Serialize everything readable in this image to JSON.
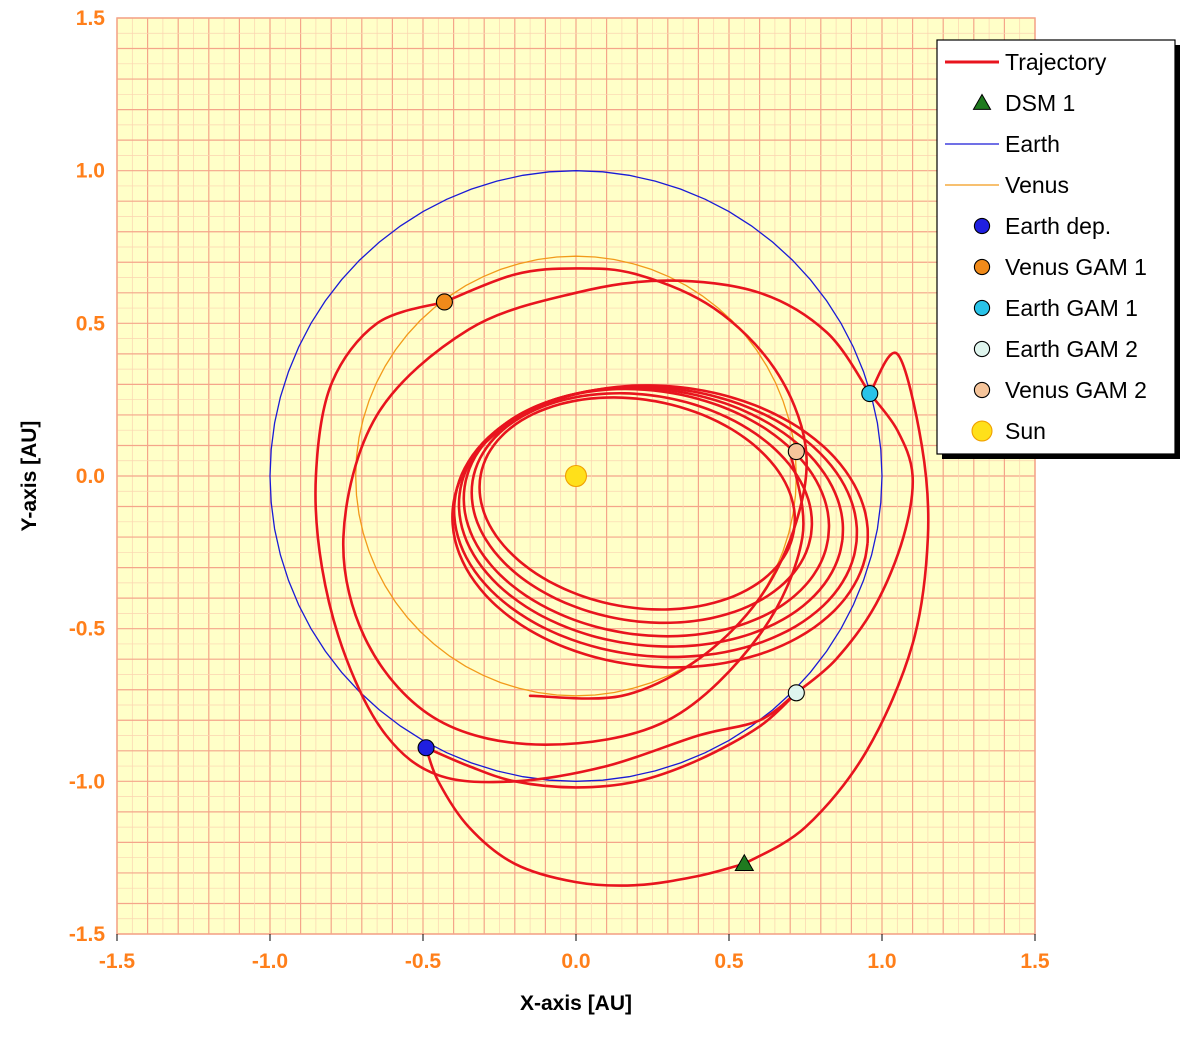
{
  "chart_data": {
    "type": "scatter",
    "xlabel": "X-axis [AU]",
    "ylabel": "Y-axis [AU]",
    "xlim": [
      -1.5,
      1.5
    ],
    "ylim": [
      -1.5,
      1.5
    ],
    "xticks": [
      "-1.5",
      "-1.0",
      "-0.5",
      "0.0",
      "0.5",
      "1.0",
      "1.5"
    ],
    "yticks": [
      "1.5",
      "1.0",
      "0.5",
      "0.0",
      "-0.5",
      "-1.0",
      "-1.5"
    ],
    "grid": true,
    "legend_position": "top-right",
    "colors": {
      "plot_background": "#ffffc8",
      "major_grid": "#f4a58a",
      "minor_grid": "#fbd3b0",
      "tick_label": "#ff7f1a",
      "trajectory": "#e8141e",
      "earth_orbit": "#1a1ad6",
      "venus_orbit": "#f29a1a"
    },
    "series": [
      {
        "name": "Trajectory",
        "kind": "line",
        "color": "#e8141e",
        "segments": [
          {
            "points": [
              [
                -0.49,
                -0.89
              ],
              [
                -0.35,
                -0.95
              ],
              [
                -0.2,
                -1.0
              ],
              [
                0.0,
                -1.02
              ],
              [
                0.2,
                -1.0
              ],
              [
                0.4,
                -0.93
              ],
              [
                0.6,
                -0.82
              ],
              [
                0.72,
                -0.71
              ]
            ]
          },
          {
            "points": [
              [
                0.72,
                -0.71
              ],
              [
                0.85,
                -0.6
              ],
              [
                0.98,
                -0.42
              ],
              [
                1.07,
                -0.2
              ],
              [
                1.1,
                0.0
              ],
              [
                1.05,
                0.15
              ],
              [
                0.96,
                0.27
              ]
            ]
          },
          {
            "points": [
              [
                0.96,
                0.27
              ],
              [
                0.82,
                0.47
              ],
              [
                0.6,
                0.6
              ],
              [
                0.3,
                0.64
              ],
              [
                0.0,
                0.6
              ],
              [
                -0.35,
                0.48
              ],
              [
                -0.65,
                0.2
              ],
              [
                -0.76,
                -0.2
              ],
              [
                -0.68,
                -0.55
              ],
              [
                -0.45,
                -0.8
              ],
              [
                -0.1,
                -0.88
              ],
              [
                0.3,
                -0.8
              ],
              [
                0.6,
                -0.52
              ],
              [
                0.74,
                -0.2
              ],
              [
                0.7,
                0.08
              ]
            ]
          },
          {
            "extra": true,
            "cx": 0.2,
            "cy": 0.0,
            "rxy": [
              [
                0.52,
                0.34
              ],
              [
                0.56,
                0.37
              ],
              [
                0.6,
                0.4
              ],
              [
                0.63,
                0.42
              ],
              [
                0.66,
                0.44
              ],
              [
                0.68,
                0.46
              ]
            ]
          },
          {
            "points": [
              [
                -0.43,
                0.57
              ],
              [
                -0.2,
                0.66
              ],
              [
                0.0,
                0.68
              ],
              [
                0.2,
                0.66
              ],
              [
                0.45,
                0.55
              ],
              [
                0.65,
                0.35
              ],
              [
                0.75,
                0.1
              ],
              [
                0.72,
                -0.15
              ],
              [
                0.6,
                -0.4
              ],
              [
                0.4,
                -0.6
              ],
              [
                0.15,
                -0.72
              ],
              [
                -0.15,
                -0.72
              ]
            ]
          },
          {
            "points": [
              [
                0.72,
                -0.71
              ],
              [
                0.6,
                -0.8
              ],
              [
                0.4,
                -0.85
              ],
              [
                0.1,
                -0.95
              ],
              [
                -0.2,
                -1.0
              ],
              [
                -0.45,
                -0.98
              ],
              [
                -0.62,
                -0.85
              ],
              [
                -0.75,
                -0.6
              ],
              [
                -0.83,
                -0.3
              ],
              [
                -0.85,
                0.0
              ],
              [
                -0.8,
                0.3
              ],
              [
                -0.65,
                0.5
              ],
              [
                -0.43,
                0.57
              ]
            ]
          },
          {
            "points": [
              [
                0.55,
                -1.27
              ],
              [
                0.4,
                -1.31
              ],
              [
                0.2,
                -1.34
              ],
              [
                0.0,
                -1.33
              ],
              [
                -0.2,
                -1.27
              ],
              [
                -0.35,
                -1.15
              ],
              [
                -0.45,
                -1.0
              ],
              [
                -0.49,
                -0.89
              ]
            ]
          },
          {
            "points": [
              [
                0.55,
                -1.27
              ],
              [
                0.75,
                -1.15
              ],
              [
                0.95,
                -0.9
              ],
              [
                1.1,
                -0.55
              ],
              [
                1.15,
                -0.2
              ],
              [
                1.13,
                0.1
              ],
              [
                1.05,
                0.4
              ],
              [
                0.96,
                0.27
              ]
            ]
          }
        ]
      },
      {
        "name": "DSM 1",
        "kind": "marker",
        "shape": "triangle",
        "color": "#1f7a1f",
        "x": 0.55,
        "y": -1.27
      },
      {
        "name": "Earth",
        "kind": "line",
        "color": "#1a1ad6",
        "orbit": {
          "cx": 0.0,
          "cy": 0.0,
          "r": 1.0
        }
      },
      {
        "name": "Venus",
        "kind": "line",
        "color": "#f29a1a",
        "orbit": {
          "cx": 0.0,
          "cy": 0.0,
          "r": 0.72
        }
      },
      {
        "name": "Earth dep.",
        "kind": "marker",
        "shape": "circle",
        "color": "#1f1fe0",
        "x": -0.49,
        "y": -0.89
      },
      {
        "name": "Venus GAM 1",
        "kind": "marker",
        "shape": "circle",
        "color": "#f08a1a",
        "x": -0.43,
        "y": 0.57
      },
      {
        "name": "Earth GAM 1",
        "kind": "marker",
        "shape": "circle",
        "color": "#29c3e8",
        "x": 0.96,
        "y": 0.27
      },
      {
        "name": "Earth GAM 2",
        "kind": "marker",
        "shape": "circle",
        "color": "#dff5ee",
        "x": 0.72,
        "y": -0.71
      },
      {
        "name": "Venus GAM 2",
        "kind": "marker",
        "shape": "circle",
        "color": "#f5c49a",
        "x": 0.72,
        "y": 0.08
      },
      {
        "name": "Sun",
        "kind": "marker",
        "shape": "circle",
        "color": "#ffe01a",
        "x": 0.0,
        "y": 0.0
      }
    ]
  }
}
